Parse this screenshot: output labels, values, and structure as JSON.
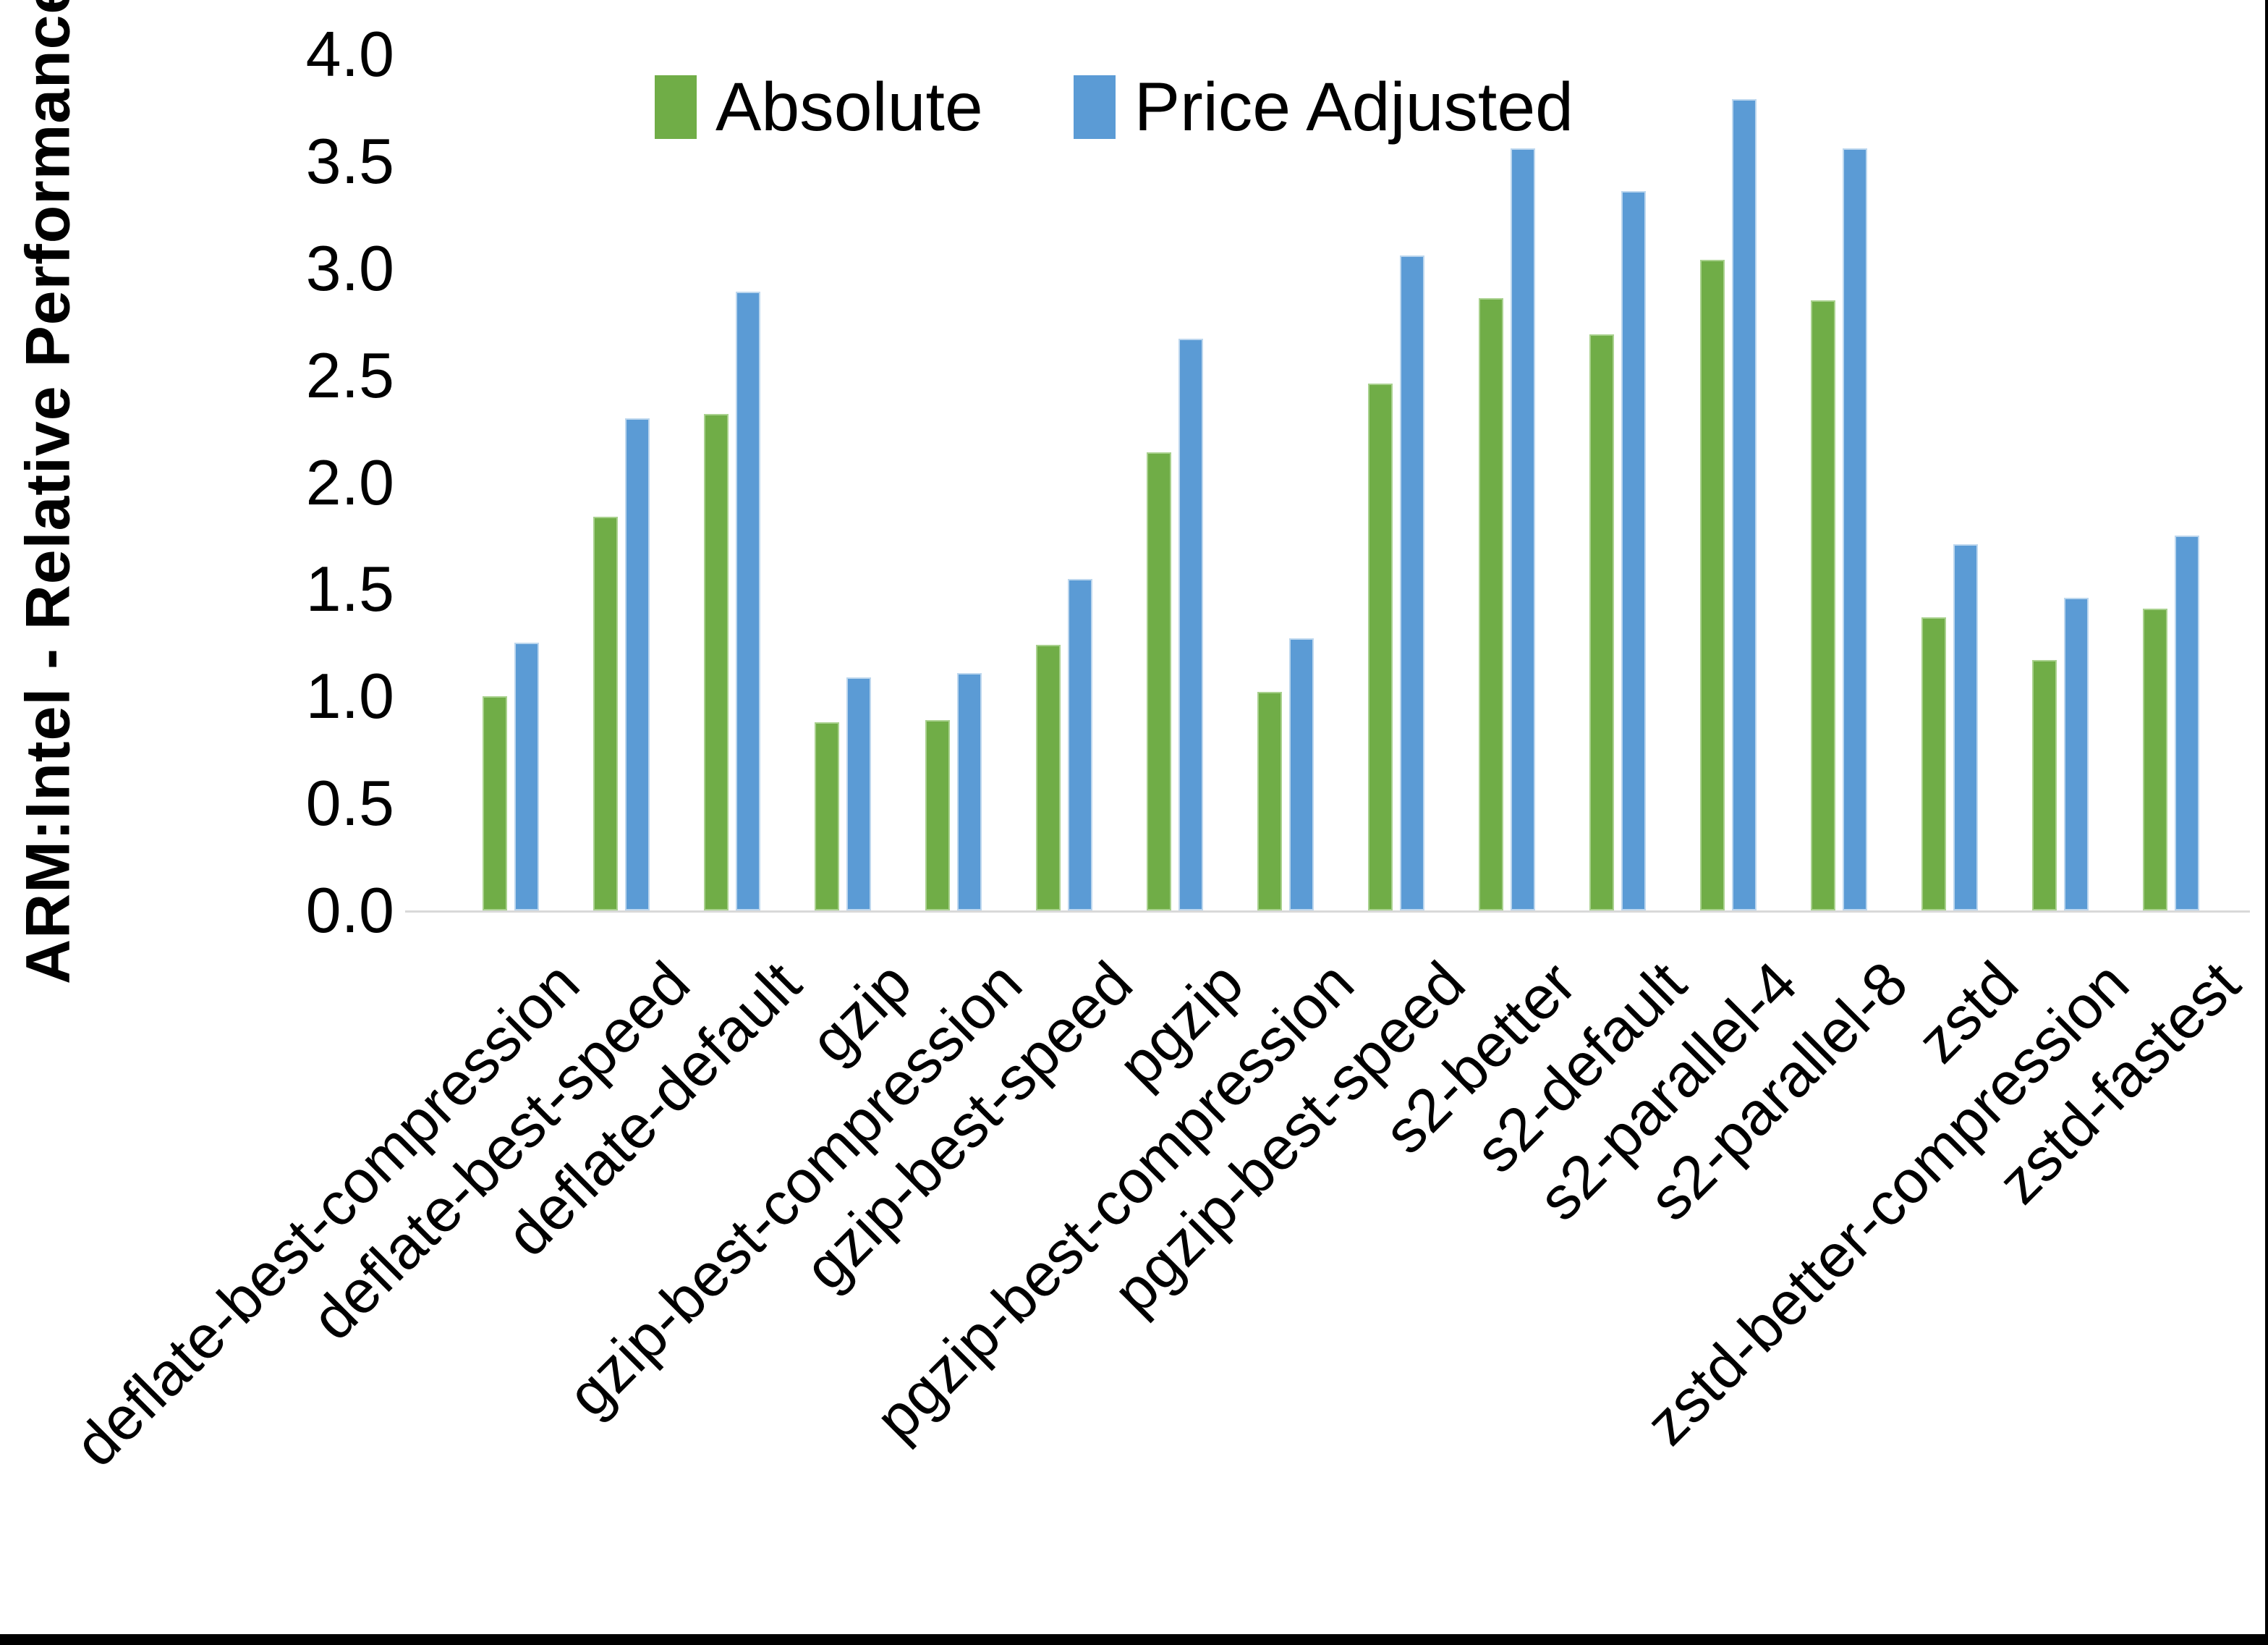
{
  "chart_data": {
    "type": "bar",
    "title": "",
    "ylabel": "ARM:Intel - Relative Performance",
    "xlabel": "",
    "ylim": [
      0.0,
      4.0
    ],
    "ytick_step": 0.5,
    "yticks": [
      "0.0",
      "0.5",
      "1.0",
      "1.5",
      "2.0",
      "2.5",
      "3.0",
      "3.5",
      "4.0"
    ],
    "grid": "off",
    "legend_position": "top",
    "categories": [
      "deflate-best-compression",
      "deflate-best-speed",
      "deflate-default",
      "gzip",
      "gzip-best-compression",
      "gzip-best-speed",
      "pgzip",
      "pgzip-best-compression",
      "pgzip-best-speed",
      "s2-better",
      "s2-default",
      "s2-parallel-4",
      "s2-parallel-8",
      "zstd",
      "zstd-better-compression",
      "zstd-fastest"
    ],
    "series": [
      {
        "name": "Absolute",
        "values": [
          1.0,
          1.84,
          2.32,
          0.88,
          0.89,
          1.24,
          2.14,
          1.02,
          2.46,
          2.86,
          2.69,
          3.04,
          2.85,
          1.37,
          1.17,
          1.41
        ]
      },
      {
        "name": "Price Adjusted",
        "values": [
          1.25,
          2.3,
          2.89,
          1.09,
          1.11,
          1.55,
          2.67,
          1.27,
          3.06,
          3.56,
          3.36,
          3.79,
          3.56,
          1.71,
          1.46,
          1.75
        ]
      }
    ],
    "colors": {
      "absolute": "#70AD47",
      "absolute_edge": "#a9d18e",
      "price_adjusted": "#5B9BD5",
      "price_adjusted_edge": "#bdd7ee",
      "axis_line": "#d9d9d9",
      "text": "#000000",
      "frame_border": "#000000"
    }
  }
}
